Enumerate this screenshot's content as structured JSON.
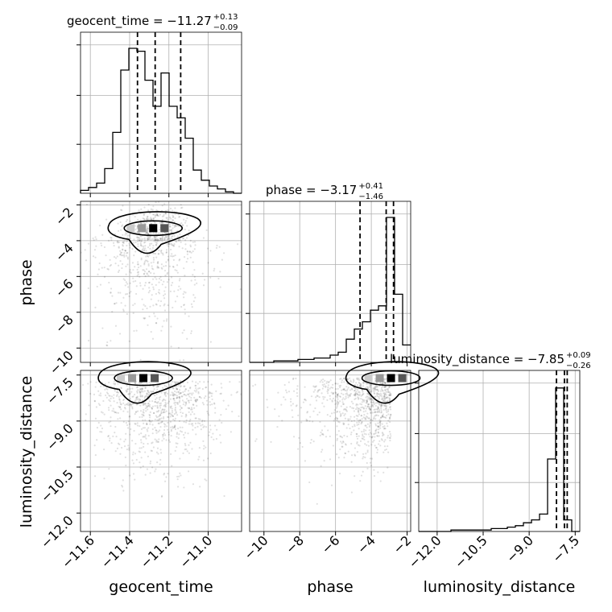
{
  "chart_data": {
    "type": "corner",
    "parameters": [
      "geocent_time",
      "phase",
      "luminosity_distance"
    ],
    "axis_labels": [
      "geocent_time",
      "phase",
      "luminosity_distance"
    ],
    "ranges": {
      "geocent_time": [
        -11.65,
        -10.83
      ],
      "phase": [
        -10.8,
        -1.8
      ],
      "luminosity_distance": [
        -12.6,
        -7.35
      ]
    },
    "ticks": {
      "geocent_time": [
        -11.6,
        -11.4,
        -11.2,
        -11.0
      ],
      "phase": [
        -10,
        -8,
        -6,
        -4,
        -2
      ],
      "luminosity_distance": [
        -12.0,
        -10.5,
        -9.0,
        -7.5
      ]
    },
    "tick_labels": {
      "geocent_time": [
        "−11.6",
        "−11.4",
        "−11.2",
        "−11.0"
      ],
      "phase": [
        "−10",
        "−8",
        "−6",
        "−4",
        "−2"
      ],
      "luminosity_distance": [
        "−12.0",
        "−10.5",
        "−9.0",
        "−7.5"
      ]
    },
    "titles": [
      {
        "param": "geocent_time",
        "main": "geocent_time = −11.27",
        "plus": "+0.13",
        "minus": "−0.09"
      },
      {
        "param": "phase",
        "main": "phase = −3.17",
        "plus": "+0.41",
        "minus": "−1.46"
      },
      {
        "param": "luminosity_distance",
        "main": "luminosity_distance = −7.85",
        "plus": "+0.09",
        "minus": "−0.26"
      }
    ],
    "histograms": {
      "geocent_time": {
        "edges_start": -11.65,
        "bin_width": 0.041,
        "counts": [
          0.02,
          0.04,
          0.07,
          0.17,
          0.42,
          0.85,
          1.0,
          0.98,
          0.78,
          0.6,
          0.83,
          0.6,
          0.52,
          0.38,
          0.16,
          0.09,
          0.05,
          0.03,
          0.01,
          0.0
        ],
        "quantiles": [
          -11.36,
          -11.27,
          -11.14
        ]
      },
      "phase": {
        "edges_start": -10.8,
        "bin_width": 0.45,
        "counts": [
          0.0,
          0.0,
          0.0,
          0.01,
          0.01,
          0.01,
          0.02,
          0.02,
          0.03,
          0.03,
          0.05,
          0.07,
          0.16,
          0.23,
          0.28,
          0.36,
          0.39,
          1.0,
          0.47,
          0.12
        ],
        "quantiles": [
          -4.63,
          -3.17,
          -2.76
        ]
      },
      "luminosity_distance": {
        "edges_start": -12.6,
        "bin_width": 0.2625,
        "counts": [
          0.0,
          0.0,
          0.0,
          0.0,
          0.01,
          0.01,
          0.01,
          0.01,
          0.01,
          0.02,
          0.02,
          0.03,
          0.04,
          0.06,
          0.08,
          0.12,
          0.5,
          0.99,
          0.08,
          0.0
        ],
        "quantiles": [
          -8.11,
          -7.85,
          -7.76
        ]
      }
    },
    "density_peaks": {
      "phase_vs_geocent_time": [
        {
          "x": -11.28,
          "y": -3.3
        }
      ],
      "luminosity_distance_vs_geocent_time": [
        {
          "x": -11.33,
          "y": -7.6
        }
      ],
      "luminosity_distance_vs_phase": [
        {
          "x": -2.9,
          "y": -7.6
        }
      ]
    }
  }
}
